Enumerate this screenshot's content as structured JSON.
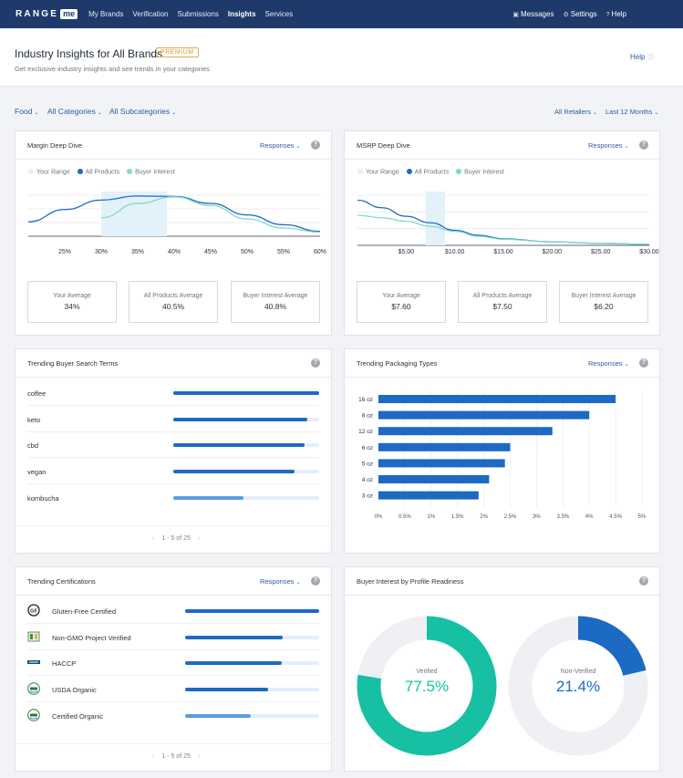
{
  "nav": {
    "logo_text": "RANGE",
    "logo_badge": "me",
    "links": [
      "My Brands",
      "Verification",
      "Submissions",
      "Insights",
      "Services"
    ],
    "right": [
      {
        "icon": "chat-icon",
        "label": "Messages"
      },
      {
        "icon": "gear-icon",
        "label": "Settings"
      },
      {
        "icon": "help-circle-icon",
        "label": "Help"
      }
    ]
  },
  "header": {
    "title": "Industry Insights for All Brands",
    "badge": "PREMIUM",
    "subtitle": "Get exclusive industry insights and see trends in your categories",
    "help": "Help"
  },
  "filters": {
    "food": "Food",
    "categories": "All Categories",
    "subcategories": "All Subcategories",
    "retailers": "All Retailers",
    "period": "Last 12 Months"
  },
  "margin": {
    "title": "Margin Deep Dive",
    "responses": "Responses",
    "legend": [
      "Your Range",
      "All Products",
      "Buyer Interest"
    ],
    "stats": [
      {
        "label": "Your Average",
        "value": "34%"
      },
      {
        "label": "All Products Average",
        "value": "40.5%"
      },
      {
        "label": "Buyer Interest Average",
        "value": "40.8%"
      }
    ]
  },
  "msrp": {
    "title": "MSRP Deep Dive",
    "responses": "Responses",
    "legend": [
      "Your Range",
      "All Products",
      "Buyer Interest"
    ],
    "stats": [
      {
        "label": "Your Average",
        "value": "$7.60"
      },
      {
        "label": "All Products Average",
        "value": "$7.50"
      },
      {
        "label": "Buyer Interest Average",
        "value": "$6.20"
      }
    ]
  },
  "search_terms": {
    "title": "Trending Buyer Search Terms",
    "items": [
      {
        "label": "coffee",
        "value": 1.0
      },
      {
        "label": "keto",
        "value": 0.92
      },
      {
        "label": "cbd",
        "value": 0.9
      },
      {
        "label": "vegan",
        "value": 0.83
      },
      {
        "label": "kombucha",
        "value": 0.48
      }
    ],
    "pager": "1 - 5 of 25"
  },
  "packaging": {
    "title": "Trending Packaging Types",
    "responses": "Responses"
  },
  "certifications": {
    "title": "Trending Certifications",
    "responses": "Responses",
    "items": [
      {
        "label": "Gluten-Free Certified",
        "icon": "gluten-free-icon",
        "value": 1.0
      },
      {
        "label": "Non-GMO Project Verified",
        "icon": "non-gmo-icon",
        "value": 0.73
      },
      {
        "label": "HACCP",
        "icon": "haccp-icon",
        "value": 0.72
      },
      {
        "label": "USDA Organic",
        "icon": "usda-organic-icon",
        "value": 0.62
      },
      {
        "label": "Certified Organic",
        "icon": "certified-organic-icon",
        "value": 0.49
      }
    ],
    "pager": "1 - 5 of 25"
  },
  "profile": {
    "title": "Buyer Interest by Profile Readiness",
    "verified_label": "Verified",
    "verified_value": "77.5%",
    "non_verified_label": "Non-Verified",
    "non_verified_value": "21.4%"
  },
  "colors": {
    "dark_blue": "#1c6ac4",
    "teal": "#17c0a3",
    "light_teal": "#7fd9c8",
    "range_fill": "#e3f1fb"
  },
  "chart_data": [
    {
      "type": "line",
      "title": "Margin Deep Dive",
      "x": [
        20,
        25,
        30,
        35,
        40,
        45,
        50,
        55,
        60
      ],
      "xticks": [
        "25%",
        "30%",
        "35%",
        "40%",
        "45%",
        "50%",
        "55%",
        "60%"
      ],
      "range": [
        30,
        39
      ],
      "series": [
        {
          "name": "All Products",
          "values": [
            0.35,
            0.65,
            0.88,
            0.98,
            0.97,
            0.8,
            0.52,
            0.28,
            0.12
          ]
        },
        {
          "name": "Buyer Interest",
          "values": [
            null,
            null,
            0.45,
            0.8,
            0.96,
            0.75,
            0.42,
            0.2,
            0.1
          ]
        }
      ]
    },
    {
      "type": "line",
      "title": "MSRP Deep Dive",
      "x": [
        0,
        2.5,
        5,
        7.5,
        10,
        12.5,
        15,
        20,
        25,
        30
      ],
      "xticks": [
        "$5.00",
        "$10.00",
        "$15.00",
        "$20.00",
        "$25.00",
        "$30.00"
      ],
      "range": [
        7,
        9
      ],
      "series": [
        {
          "name": "All Products",
          "values": [
            0.9,
            0.75,
            0.58,
            0.45,
            0.3,
            0.2,
            0.13,
            0.07,
            0.04,
            0.02
          ]
        },
        {
          "name": "Buyer Interest",
          "values": [
            0.6,
            0.55,
            0.48,
            0.38,
            0.28,
            0.18,
            0.12,
            0.07,
            0.04,
            0.02
          ]
        }
      ]
    },
    {
      "type": "bar",
      "orientation": "horizontal",
      "title": "Trending Packaging Types",
      "categories": [
        "16 oz",
        "8 oz",
        "12 oz",
        "6 oz",
        "5 oz",
        "4 oz",
        "3 oz"
      ],
      "values": [
        4.5,
        4.0,
        3.3,
        2.5,
        2.4,
        2.1,
        1.9
      ],
      "xticks": [
        "0%",
        "0.5%",
        "1%",
        "1.5%",
        "2%",
        "2.5%",
        "3%",
        "3.5%",
        "4%",
        "4.5%",
        "5%"
      ],
      "xlim": [
        0,
        5
      ]
    },
    {
      "type": "pie",
      "title": "Buyer Interest by Profile Readiness",
      "categories": [
        "Verified",
        "Non-Verified"
      ],
      "values": [
        77.5,
        21.4
      ]
    }
  ]
}
